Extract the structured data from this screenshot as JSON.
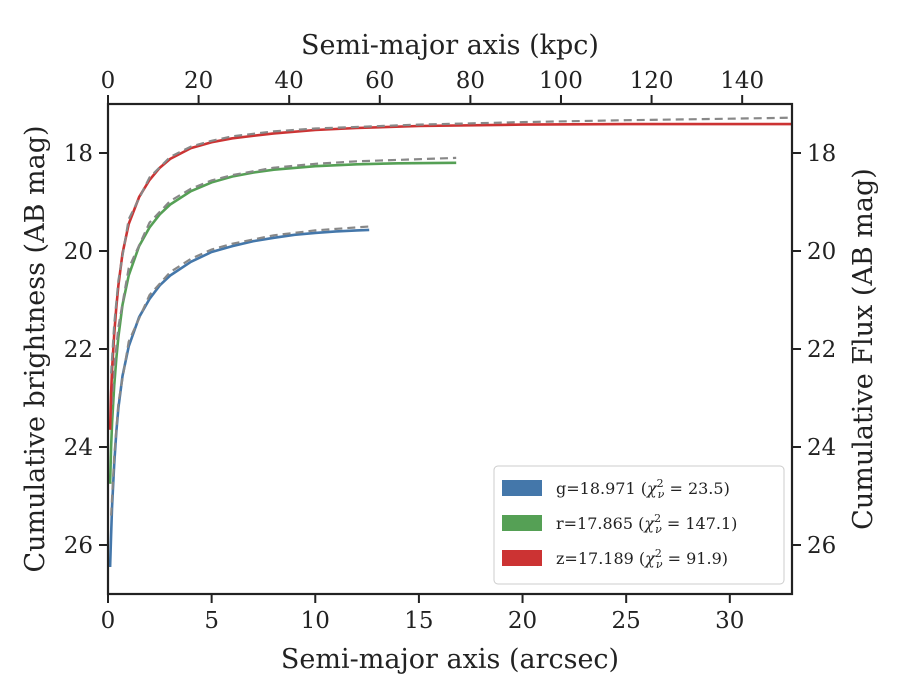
{
  "chart_data": {
    "type": "line",
    "xlabel": "Semi-major axis (arcsec)",
    "x2label": "Semi-major axis (kpc)",
    "ylabel": "Cumulative brightness (AB mag)",
    "y2label": "Cumulative Flux (AB mag)",
    "xlim": [
      0,
      33
    ],
    "x2lim": [
      0,
      151
    ],
    "ylim": [
      27,
      17
    ],
    "xticks": [
      0,
      5,
      10,
      15,
      20,
      25,
      30
    ],
    "x2ticks": [
      0,
      20,
      40,
      60,
      80,
      100,
      120,
      140
    ],
    "yticks": [
      18,
      20,
      22,
      24,
      26
    ],
    "y_inverted": true,
    "grid": false,
    "legend_position": "bottom-right",
    "series": [
      {
        "name": "g=18.971 ($\\chi^2_\\nu = 23.5$)",
        "legend_prefix": "g=18.971 (",
        "legend_value": " = 23.5)",
        "color": "#4477aa",
        "x": [
          0.1,
          0.15,
          0.2,
          0.3,
          0.4,
          0.5,
          0.7,
          1.0,
          1.5,
          2.0,
          2.5,
          3.0,
          4.0,
          5.0,
          6.0,
          7.0,
          8.0,
          9.0,
          10.0,
          11.0,
          12.0,
          12.6
        ],
        "y": [
          26.45,
          25.8,
          25.2,
          24.35,
          23.7,
          23.2,
          22.55,
          21.95,
          21.35,
          20.98,
          20.7,
          20.5,
          20.22,
          20.02,
          19.9,
          19.8,
          19.73,
          19.67,
          19.63,
          19.6,
          19.58,
          19.57
        ],
        "model_x": [
          0.15,
          0.3,
          0.5,
          1.0,
          2.0,
          3.0,
          4.0,
          5.0,
          6.0,
          8.0,
          10.0,
          12.6
        ],
        "model_y": [
          25.4,
          24.2,
          23.1,
          21.85,
          20.9,
          20.43,
          20.16,
          19.97,
          19.85,
          19.68,
          19.58,
          19.5
        ]
      },
      {
        "name": "r=17.865 ($\\chi^2_\\nu = 147.1$)",
        "legend_prefix": "r=17.865 (",
        "legend_value": " = 147.1)",
        "color": "#55a055",
        "x": [
          0.1,
          0.15,
          0.2,
          0.3,
          0.4,
          0.5,
          0.7,
          1.0,
          1.5,
          2.0,
          2.5,
          3.0,
          4.0,
          5.0,
          6.0,
          7.0,
          8.0,
          10.0,
          12.0,
          14.0,
          16.8
        ],
        "y": [
          24.75,
          24.0,
          23.5,
          22.75,
          22.2,
          21.75,
          21.1,
          20.5,
          19.9,
          19.52,
          19.25,
          19.05,
          18.78,
          18.6,
          18.48,
          18.4,
          18.34,
          18.27,
          18.23,
          18.21,
          18.2
        ],
        "model_x": [
          0.15,
          0.3,
          0.5,
          1.0,
          2.0,
          3.0,
          4.0,
          5.0,
          6.0,
          8.0,
          10.0,
          12.0,
          16.8
        ],
        "model_y": [
          23.4,
          22.4,
          21.55,
          20.35,
          19.42,
          18.98,
          18.73,
          18.56,
          18.45,
          18.3,
          18.22,
          18.17,
          18.1
        ]
      },
      {
        "name": "z=17.189 ($\\chi^2_\\nu = 91.9$)",
        "legend_prefix": "z=17.189 (",
        "legend_value": " = 91.9)",
        "color": "#cc3333",
        "x": [
          0.1,
          0.15,
          0.2,
          0.3,
          0.4,
          0.5,
          0.7,
          1.0,
          1.5,
          2.0,
          2.5,
          3.0,
          4.0,
          5.0,
          6.0,
          8.0,
          10.0,
          12.0,
          15.0,
          20.0,
          25.0,
          30.0,
          33.0
        ],
        "y": [
          23.65,
          22.9,
          22.4,
          21.7,
          21.15,
          20.7,
          20.05,
          19.45,
          18.9,
          18.55,
          18.3,
          18.12,
          17.9,
          17.78,
          17.7,
          17.6,
          17.53,
          17.49,
          17.45,
          17.42,
          17.41,
          17.41,
          17.41
        ],
        "model_x": [
          0.15,
          0.3,
          0.5,
          1.0,
          2.0,
          3.0,
          4.0,
          5.0,
          6.0,
          8.0,
          10.0,
          15.0,
          20.0,
          25.0,
          30.0,
          33.0
        ],
        "model_y": [
          22.5,
          21.5,
          20.6,
          19.35,
          18.5,
          18.08,
          17.87,
          17.75,
          17.66,
          17.56,
          17.5,
          17.42,
          17.37,
          17.33,
          17.3,
          17.28
        ]
      }
    ],
    "model_line_color": "#888888"
  }
}
